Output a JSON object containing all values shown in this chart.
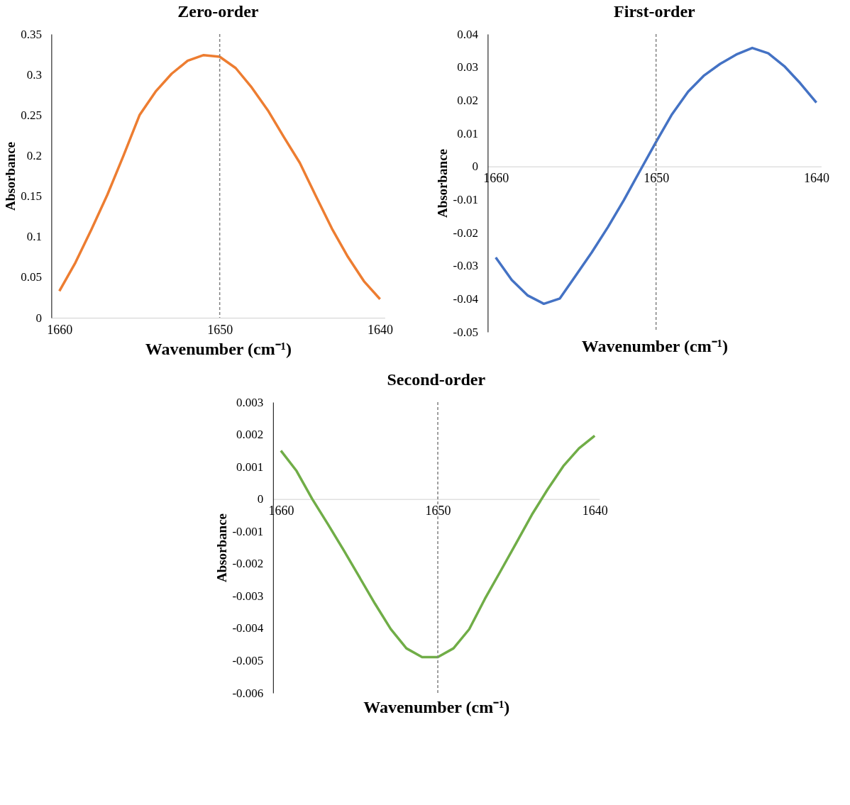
{
  "chart_data": [
    {
      "type": "line",
      "title": "Zero-order",
      "xlabel": "Wavenumber (cm⁻¹)",
      "ylabel": "Absorbance",
      "x": [
        1660,
        1659,
        1658,
        1657,
        1656,
        1655,
        1654,
        1653,
        1652,
        1651,
        1650,
        1649,
        1648,
        1647,
        1646,
        1645,
        1644,
        1643,
        1642,
        1641,
        1640
      ],
      "series": [
        {
          "color": "#ed7d31",
          "values": [
            0.033,
            0.068,
            0.109,
            0.152,
            0.2,
            0.25,
            0.279,
            0.301,
            0.317,
            0.324,
            0.322,
            0.308,
            0.284,
            0.256,
            0.223,
            0.191,
            0.15,
            0.11,
            0.075,
            0.045,
            0.023
          ]
        }
      ],
      "xlim": [
        1660.5,
        1639.7
      ],
      "xticks": [
        1660,
        1650,
        1640
      ],
      "ylim": [
        0,
        0.35
      ],
      "yticks": [
        0,
        0.05,
        0.1,
        0.15,
        0.2,
        0.25,
        0.3,
        0.35
      ],
      "ref_lines": [
        {
          "axis": "x",
          "value": 1650,
          "line_style": "dashed",
          "color": "#808080"
        }
      ],
      "grid": false,
      "line_style": "solid",
      "marker": "none"
    },
    {
      "type": "line",
      "title": "First-order",
      "xlabel": "Wavenumber (cm⁻¹)",
      "ylabel": "Absorbance",
      "x": [
        1660,
        1659,
        1658,
        1657,
        1656,
        1655,
        1654,
        1653,
        1652,
        1651,
        1650,
        1649,
        1648,
        1647,
        1646,
        1645,
        1644,
        1643,
        1642,
        1641,
        1640
      ],
      "series": [
        {
          "color": "#4472c4",
          "values": [
            -0.0275,
            -0.0343,
            -0.039,
            -0.0415,
            -0.0399,
            -0.0329,
            -0.0259,
            -0.0183,
            -0.0101,
            -0.0013,
            0.0074,
            0.0158,
            0.0226,
            0.0275,
            0.031,
            0.0338,
            0.0358,
            0.0342,
            0.0303,
            0.0251,
            0.0193
          ]
        }
      ],
      "xlim": [
        1660.5,
        1639.7
      ],
      "xticks": [
        1660,
        1650,
        1640
      ],
      "ylim": [
        -0.05,
        0.04
      ],
      "yticks": [
        -0.05,
        -0.04,
        -0.03,
        -0.02,
        -0.01,
        0,
        0.01,
        0.02,
        0.03,
        0.04
      ],
      "ref_lines": [
        {
          "axis": "x",
          "value": 1650,
          "line_style": "dashed",
          "color": "#808080"
        }
      ],
      "grid": false,
      "line_style": "solid",
      "marker": "none"
    },
    {
      "type": "line",
      "title": "Second-order",
      "xlabel": "Wavenumber (cm⁻¹)",
      "ylabel": "Absorbance",
      "x": [
        1660,
        1659,
        1658,
        1657,
        1656,
        1655,
        1654,
        1653,
        1652,
        1651,
        1650,
        1649,
        1648,
        1647,
        1646,
        1645,
        1644,
        1643,
        1642,
        1641,
        1640
      ],
      "series": [
        {
          "color": "#70ad47",
          "values": [
            0.0015,
            0.00087,
            0,
            -0.00078,
            -0.00158,
            -0.00241,
            -0.00324,
            -0.00402,
            -0.00462,
            -0.00489,
            -0.00489,
            -0.00462,
            -0.00403,
            -0.00309,
            -0.00223,
            -0.00136,
            -0.00048,
            0.0003,
            0.00102,
            0.00157,
            0.00196
          ]
        }
      ],
      "xlim": [
        1660.5,
        1639.7
      ],
      "xticks": [
        1660,
        1650,
        1640
      ],
      "ylim": [
        -0.006,
        0.003
      ],
      "yticks": [
        -0.006,
        -0.005,
        -0.004,
        -0.003,
        -0.002,
        -0.001,
        0,
        0.001,
        0.002,
        0.003
      ],
      "ref_lines": [
        {
          "axis": "x",
          "value": 1650,
          "line_style": "dashed",
          "color": "#808080"
        }
      ],
      "grid": false,
      "line_style": "solid",
      "marker": "none"
    }
  ]
}
